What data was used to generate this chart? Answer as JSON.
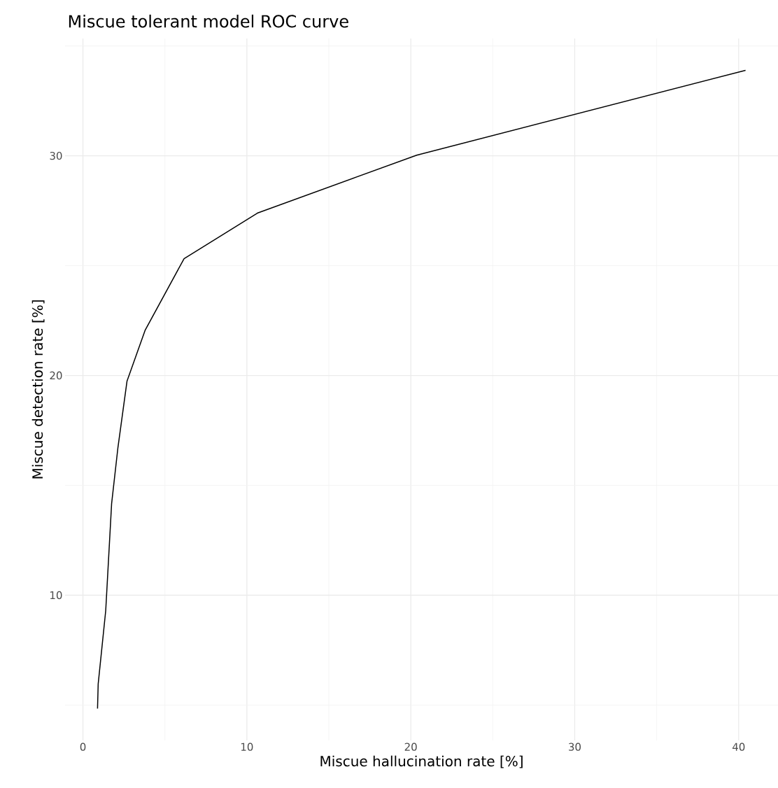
{
  "chart_data": {
    "type": "line",
    "title": "Miscue tolerant model ROC curve",
    "xlabel": "Miscue hallucination rate [%]",
    "ylabel": "Miscue detection rate [%]",
    "x": [
      0.89,
      0.93,
      1.39,
      1.75,
      2.13,
      2.69,
      3.8,
      6.17,
      10.64,
      20.36,
      40.42
    ],
    "series": [
      {
        "color": "#000000",
        "values": [
          4.84,
          5.96,
          9.3,
          14.17,
          16.69,
          19.75,
          22.07,
          25.32,
          27.39,
          30.03,
          33.89
        ]
      }
    ],
    "xlim": [
      -1.09,
      42.4
    ],
    "ylim": [
      3.39,
      35.34
    ],
    "xticks": [
      0,
      10,
      20,
      30,
      40
    ],
    "yticks": [
      10,
      20,
      30
    ],
    "grid": true
  }
}
